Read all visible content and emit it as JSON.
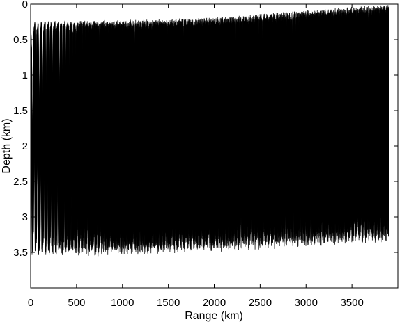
{
  "chart_data": {
    "type": "line",
    "title": "",
    "xlabel": "Range (km)",
    "ylabel": "Depth (km)",
    "xlim": [
      0,
      4000
    ],
    "ylim": [
      4,
      0
    ],
    "y_axis_inverted": true,
    "grid": false,
    "legend": "none",
    "line_color": "#000000",
    "xticks": [
      0,
      500,
      1000,
      1500,
      2000,
      2500,
      3000,
      3500
    ],
    "yticks": [
      0,
      0.5,
      1,
      1.5,
      2,
      2.5,
      3,
      3.5
    ],
    "xtick_labels": [
      "0",
      "500",
      "1000",
      "1500",
      "2000",
      "2500",
      "3000",
      "3500"
    ],
    "ytick_labels": [
      "0",
      "0.5",
      "1",
      "1.5",
      "2",
      "2.5",
      "3",
      "3.5"
    ],
    "series": [
      {
        "description_values": "ray paths oscillating between upper and lower turning depths",
        "range_extent_km": [
          0,
          3900
        ],
        "upper_turning_depth_km": {
          "x": [
            0,
            1000,
            2000,
            3000,
            3900
          ],
          "y": [
            0.24,
            0.22,
            0.18,
            0.08,
            0.0
          ]
        },
        "lower_turning_depth_km": {
          "x": [
            0,
            1000,
            2000,
            3000,
            3900
          ],
          "y": [
            3.57,
            3.55,
            3.5,
            3.43,
            3.35
          ]
        },
        "cycle_length_km": 36
      }
    ]
  }
}
